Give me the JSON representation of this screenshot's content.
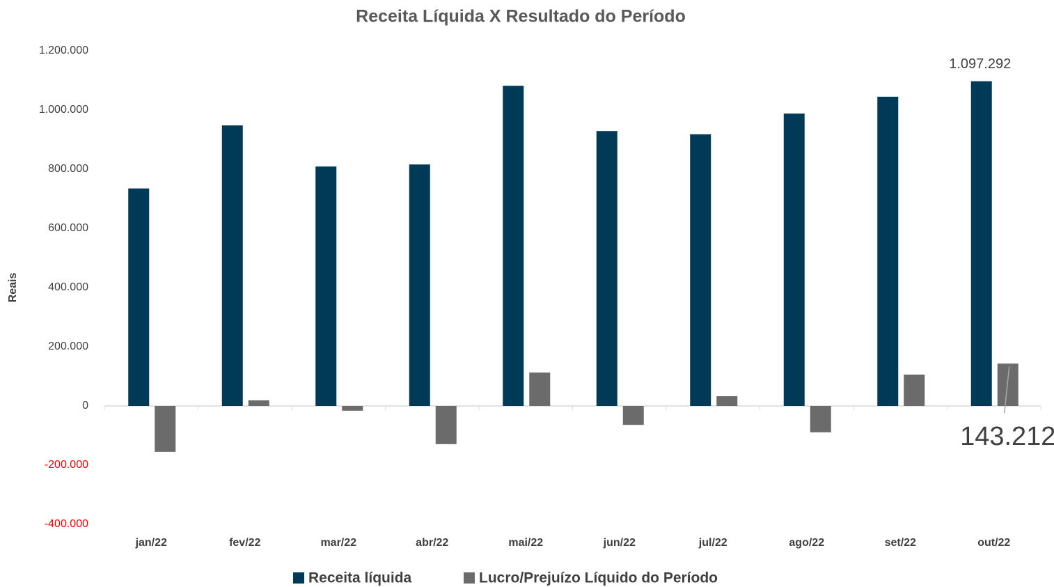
{
  "chart_data": {
    "type": "bar",
    "title": "Receita Líquida X Resultado do Período",
    "ylabel": "Reais",
    "categories": [
      "jan/22",
      "fev/22",
      "mar/22",
      "abr/22",
      "mai/22",
      "jun/22",
      "jul/22",
      "ago/22",
      "set/22",
      "out/22"
    ],
    "series": [
      {
        "name": "Receita líquida",
        "color": "#003a57",
        "values": [
          735000,
          948000,
          809000,
          816000,
          1082000,
          929000,
          918000,
          988000,
          1045000,
          1097292
        ],
        "value_labels": [
          null,
          null,
          null,
          null,
          null,
          null,
          null,
          null,
          null,
          "1.097.292"
        ]
      },
      {
        "name": "Lucro/Prejuízo Líquido do Período",
        "color": "#6b6b6b",
        "values": [
          -155000,
          19000,
          -16000,
          -129000,
          113000,
          -64000,
          33000,
          -89000,
          106000,
          143212
        ],
        "value_labels": [
          null,
          null,
          null,
          null,
          null,
          null,
          null,
          null,
          null,
          "143.212"
        ]
      }
    ],
    "ylim": [
      -400000,
      1200000
    ],
    "yticks": [
      {
        "value": -400000,
        "label": "-400.000"
      },
      {
        "value": -200000,
        "label": "-200.000"
      },
      0,
      {
        "value": 200000,
        "label": "200.000"
      },
      {
        "value": 400000,
        "label": "400.000"
      },
      {
        "value": 600000,
        "label": "600.000"
      },
      {
        "value": 800000,
        "label": "800.000"
      },
      {
        "value": 1000000,
        "label": "1.000.000"
      },
      {
        "value": 1200000,
        "label": "1.200.000"
      }
    ],
    "negative_tick_color": "#ff0000",
    "grid": false,
    "legend": "bottom"
  }
}
